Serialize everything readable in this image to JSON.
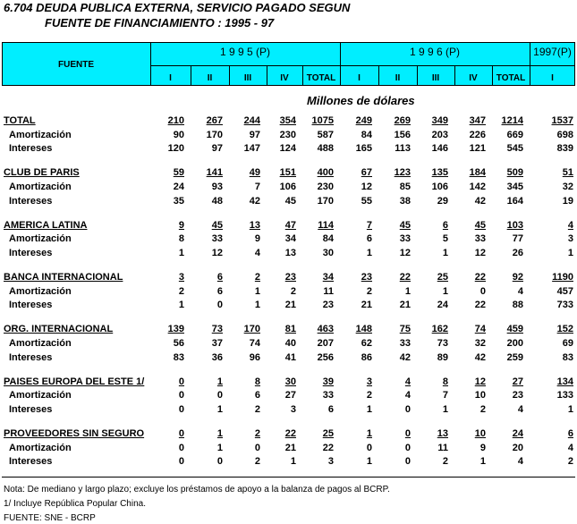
{
  "title": [
    "6.704  DEUDA PUBLICA EXTERNA, SERVICIO PAGADO SEGUN",
    "FUENTE DE FINANCIAMIENTO : 1995 - 97"
  ],
  "header": {
    "source": "FUENTE",
    "years": [
      "1 9 9 5 (P)",
      "1 9 9 6 (P)",
      "1997(P)"
    ],
    "periods": [
      "I",
      "II",
      "III",
      "IV",
      "TOTAL",
      "I",
      "II",
      "III",
      "IV",
      "TOTAL",
      "I"
    ]
  },
  "units": "Millones de dólares",
  "groups": [
    {
      "name": "TOTAL",
      "values": [
        210,
        267,
        244,
        354,
        1075,
        249,
        269,
        349,
        347,
        1214,
        1537
      ],
      "rows": [
        {
          "label": "Amortización",
          "values": [
            90,
            170,
            97,
            230,
            587,
            84,
            156,
            203,
            226,
            669,
            698
          ]
        },
        {
          "label": "Intereses",
          "values": [
            120,
            97,
            147,
            124,
            488,
            165,
            113,
            146,
            121,
            545,
            839
          ]
        }
      ]
    },
    {
      "name": "CLUB DE PARIS",
      "values": [
        59,
        141,
        49,
        151,
        400,
        67,
        123,
        135,
        184,
        509,
        51
      ],
      "rows": [
        {
          "label": "Amortización",
          "values": [
            24,
            93,
            7,
            106,
            230,
            12,
            85,
            106,
            142,
            345,
            32
          ]
        },
        {
          "label": "Intereses",
          "values": [
            35,
            48,
            42,
            45,
            170,
            55,
            38,
            29,
            42,
            164,
            19
          ]
        }
      ]
    },
    {
      "name": "AMERICA LATINA",
      "values": [
        9,
        45,
        13,
        47,
        114,
        7,
        45,
        6,
        45,
        103,
        4
      ],
      "rows": [
        {
          "label": "Amortización",
          "values": [
            8,
            33,
            9,
            34,
            84,
            6,
            33,
            5,
            33,
            77,
            3
          ]
        },
        {
          "label": "Intereses",
          "values": [
            1,
            12,
            4,
            13,
            30,
            1,
            12,
            1,
            12,
            26,
            1
          ]
        }
      ]
    },
    {
      "name": "BANCA INTERNACIONAL",
      "values": [
        3,
        6,
        2,
        23,
        34,
        23,
        22,
        25,
        22,
        92,
        1190
      ],
      "rows": [
        {
          "label": "Amortización",
          "values": [
            2,
            6,
            1,
            2,
            11,
            2,
            1,
            1,
            0,
            4,
            457
          ]
        },
        {
          "label": "Intereses",
          "values": [
            1,
            0,
            1,
            21,
            23,
            21,
            21,
            24,
            22,
            88,
            733
          ]
        }
      ]
    },
    {
      "name": "ORG. INTERNACIONAL",
      "values": [
        139,
        73,
        170,
        81,
        463,
        148,
        75,
        162,
        74,
        459,
        152
      ],
      "rows": [
        {
          "label": "Amortización",
          "values": [
            56,
            37,
            74,
            40,
            207,
            62,
            33,
            73,
            32,
            200,
            69
          ]
        },
        {
          "label": "Intereses",
          "values": [
            83,
            36,
            96,
            41,
            256,
            86,
            42,
            89,
            42,
            259,
            83
          ]
        }
      ]
    },
    {
      "name": "PAISES EUROPA DEL ESTE  1/",
      "values": [
        0,
        1,
        8,
        30,
        39,
        3,
        4,
        8,
        12,
        27,
        134
      ],
      "rows": [
        {
          "label": "Amortización",
          "values": [
            0,
            0,
            6,
            27,
            33,
            2,
            4,
            7,
            10,
            23,
            133
          ]
        },
        {
          "label": "Intereses",
          "values": [
            0,
            1,
            2,
            3,
            6,
            1,
            0,
            1,
            2,
            4,
            1
          ]
        }
      ]
    },
    {
      "name": "PROVEEDORES SIN SEGURO",
      "values": [
        0,
        1,
        2,
        22,
        25,
        1,
        0,
        13,
        10,
        24,
        6
      ],
      "rows": [
        {
          "label": "Amortización",
          "values": [
            0,
            1,
            0,
            21,
            22,
            0,
            0,
            11,
            9,
            20,
            4
          ]
        },
        {
          "label": "Intereses",
          "values": [
            0,
            0,
            2,
            1,
            3,
            1,
            0,
            2,
            1,
            4,
            2
          ]
        }
      ]
    }
  ],
  "notes": [
    "Nota: De mediano y largo plazo; excluye los préstamos de apoyo a la balanza de pagos al BCRP.",
    "1/ Incluye República Popular China.",
    "FUENTE: SNE - BCRP"
  ]
}
